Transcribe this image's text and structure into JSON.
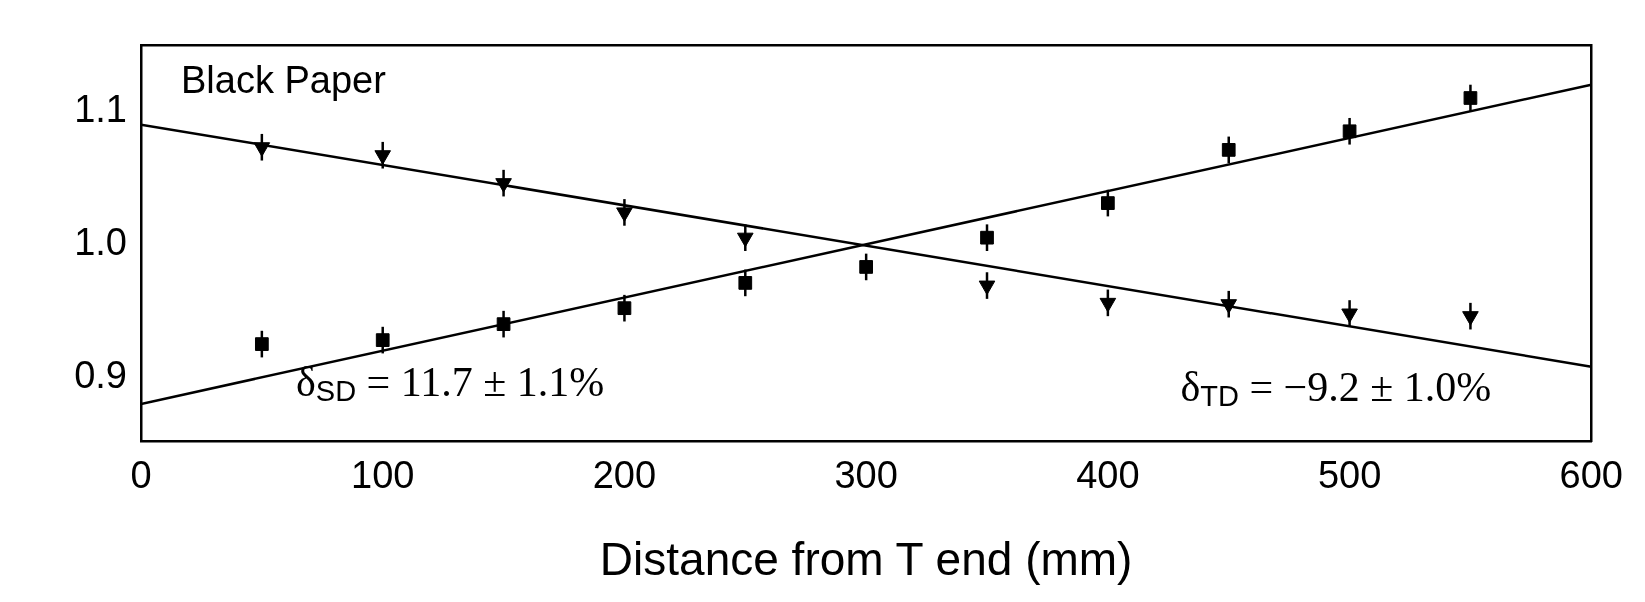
{
  "chart_data": {
    "type": "scatter",
    "xlabel": "Distance from T end (mm)",
    "xlim": [
      0,
      600
    ],
    "xticks": [
      0,
      100,
      200,
      300,
      400,
      500,
      600
    ],
    "ylim": [
      0.852,
      1.15
    ],
    "yticks": [
      {
        "value": 0.9,
        "label": "0.9"
      },
      {
        "value": 1,
        "label": "1.0"
      },
      {
        "value": 1.1,
        "label": "1.1"
      }
    ],
    "grid": false,
    "legend": false,
    "series": [
      {
        "type": "scatter",
        "marker": "square",
        "color": "#000000",
        "x": [
          50,
          100,
          150,
          200,
          250,
          300,
          350,
          400,
          450,
          500,
          550
        ],
        "values": [
          0.925,
          0.928,
          0.94,
          0.952,
          0.971,
          0.983,
          1.005,
          1.031,
          1.071,
          1.085,
          1.11
        ],
        "errors": [
          0.01,
          0.01,
          0.01,
          0.01,
          0.01,
          0.01,
          0.01,
          0.01,
          0.01,
          0.01,
          0.01
        ]
      },
      {
        "type": "scatter",
        "marker": "triangle",
        "color": "#000000",
        "x": [
          50,
          100,
          150,
          200,
          250,
          300,
          350,
          400,
          450,
          500,
          550
        ],
        "values": [
          1.073,
          1.067,
          1.046,
          1.024,
          1.005,
          null,
          0.969,
          0.956,
          0.955,
          0.948,
          0.946
        ],
        "errors": [
          0.01,
          0.01,
          0.01,
          0.01,
          0.01,
          null,
          0.01,
          0.01,
          0.01,
          0.01,
          0.01
        ]
      },
      {
        "type": "line",
        "marker": "none",
        "color": "#000000",
        "x": [
          0,
          600
        ],
        "values": [
          1.09,
          0.908
        ]
      },
      {
        "type": "line",
        "marker": "none",
        "color": "#000000",
        "x": [
          0,
          600
        ],
        "values": [
          0.88,
          1.12
        ]
      }
    ],
    "annotations": [
      "Black Paper",
      "δ$_{SD}$ = 11.7 ± 1.1%",
      "δ$_{TD}$ = −9.2 ± 1.0%"
    ]
  }
}
